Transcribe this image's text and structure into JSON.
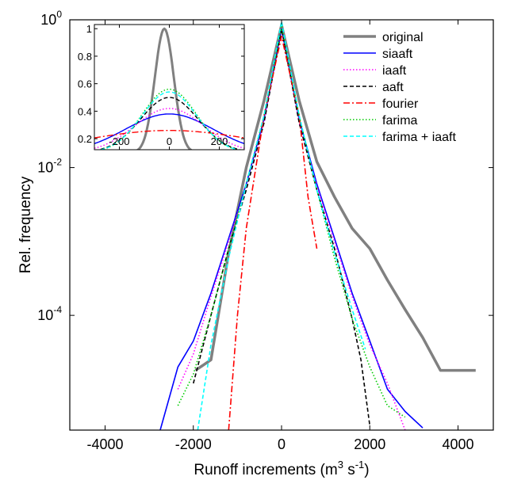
{
  "chart_data": [
    {
      "type": "line",
      "xlabel": "Runoff increments (m³ s⁻¹)",
      "xlabel_parts": [
        "Runoff increments (m",
        "3",
        " s",
        "-1",
        ")"
      ],
      "ylabel": "Rel. frequency",
      "yscale": "log",
      "xlim": [
        -4800,
        4800
      ],
      "ylim": [
        2.8e-06,
        1
      ],
      "xticks": [
        -4000,
        -2000,
        0,
        2000,
        4000
      ],
      "xtick_labels": [
        "-4000",
        "-2000",
        "0",
        "2000",
        "4000"
      ],
      "yticks": [
        {
          "value": 1,
          "base": "10",
          "exp": "0"
        },
        {
          "value": 0.01,
          "base": "10",
          "exp": "-2"
        },
        {
          "value": 0.0001,
          "base": "10",
          "exp": "-4"
        }
      ],
      "grid": false,
      "legend_position": "top-right",
      "series": [
        {
          "name": "original",
          "color": "#808080",
          "dash": "solid",
          "width": 3.5,
          "points": [
            [
              -1950,
              1.8e-05
            ],
            [
              -1600,
              2.5e-05
            ],
            [
              -1200,
              0.0007
            ],
            [
              -800,
              0.01
            ],
            [
              -400,
              0.08
            ],
            [
              0,
              0.85
            ],
            [
              400,
              0.08
            ],
            [
              800,
              0.012
            ],
            [
              1200,
              0.004
            ],
            [
              1600,
              0.0015
            ],
            [
              2000,
              0.0008
            ],
            [
              2400,
              0.0003
            ],
            [
              2800,
              0.00012
            ],
            [
              3200,
              5e-05
            ],
            [
              3600,
              1.8e-05
            ],
            [
              4400,
              1.8e-05
            ]
          ]
        },
        {
          "name": "siaaft",
          "color": "#0000ff",
          "dash": "solid",
          "width": 1.6,
          "points": [
            [
              -2750,
              2.8e-06
            ],
            [
              -2350,
              2e-05
            ],
            [
              -2000,
              4.5e-05
            ],
            [
              -1600,
              0.0002
            ],
            [
              -1200,
              0.0011
            ],
            [
              -800,
              0.006
            ],
            [
              -400,
              0.045
            ],
            [
              0,
              0.75
            ],
            [
              400,
              0.045
            ],
            [
              800,
              0.006
            ],
            [
              1200,
              0.0011
            ],
            [
              1600,
              0.0002
            ],
            [
              2000,
              4.5e-05
            ],
            [
              2400,
              1e-05
            ],
            [
              2800,
              5e-06
            ],
            [
              3200,
              3e-06
            ]
          ]
        },
        {
          "name": "iaaft",
          "color": "#ff00ff",
          "dash": "1.5,2.5",
          "width": 1.6,
          "points": [
            [
              -2350,
              1e-05
            ],
            [
              -2000,
              3e-05
            ],
            [
              -1600,
              0.00018
            ],
            [
              -1200,
              0.001
            ],
            [
              -800,
              0.0055
            ],
            [
              -400,
              0.04
            ],
            [
              0,
              0.75
            ],
            [
              400,
              0.04
            ],
            [
              800,
              0.0055
            ],
            [
              1200,
              0.001
            ],
            [
              1600,
              0.00018
            ],
            [
              2000,
              4e-05
            ],
            [
              2400,
              1.2e-05
            ],
            [
              2800,
              2.8e-06
            ]
          ]
        },
        {
          "name": "aaft",
          "color": "#000000",
          "dash": "5,3",
          "width": 1.6,
          "points": [
            [
              -2000,
              1.2e-05
            ],
            [
              -1600,
              0.0001
            ],
            [
              -1200,
              0.0008
            ],
            [
              -800,
              0.005
            ],
            [
              -400,
              0.04
            ],
            [
              0,
              0.75
            ],
            [
              400,
              0.04
            ],
            [
              800,
              0.005
            ],
            [
              1200,
              0.0008
            ],
            [
              1600,
              9e-05
            ],
            [
              1800,
              2.5e-05
            ],
            [
              2000,
              3.2e-06
            ]
          ]
        },
        {
          "name": "fourier",
          "color": "#ff0000",
          "dash": "8,3,2,3",
          "width": 1.6,
          "points": [
            [
              -1200,
              2.8e-06
            ],
            [
              -1000,
              0.0001
            ],
            [
              -800,
              0.0015
            ],
            [
              -400,
              0.05
            ],
            [
              0,
              0.6
            ],
            [
              400,
              0.05
            ],
            [
              600,
              0.004
            ],
            [
              800,
              0.0008
            ]
          ]
        },
        {
          "name": "farima",
          "color": "#00cc00",
          "dash": "1.5,2.5",
          "width": 1.6,
          "points": [
            [
              -2350,
              6e-06
            ],
            [
              -2000,
              1.6e-05
            ],
            [
              -1600,
              0.0001
            ],
            [
              -1200,
              0.0008
            ],
            [
              -800,
              0.006
            ],
            [
              -400,
              0.05
            ],
            [
              0,
              0.8
            ],
            [
              400,
              0.05
            ],
            [
              800,
              0.005
            ],
            [
              1200,
              0.0006
            ],
            [
              1600,
              9e-05
            ],
            [
              2000,
              2e-05
            ],
            [
              2400,
              6e-06
            ],
            [
              2800,
              4.2e-06
            ]
          ]
        },
        {
          "name": "farima + iaaft",
          "color": "#00ffff",
          "dash": "5,3",
          "width": 1.6,
          "points": [
            [
              -1900,
              2.8e-06
            ],
            [
              -1600,
              4e-05
            ],
            [
              -1200,
              0.0006
            ],
            [
              -800,
              0.006
            ],
            [
              -400,
              0.05
            ],
            [
              0,
              0.95
            ],
            [
              400,
              0.05
            ],
            [
              800,
              0.005
            ],
            [
              1200,
              0.0007
            ],
            [
              1600,
              0.00012
            ],
            [
              1900,
              3.5e-05
            ]
          ]
        }
      ]
    },
    {
      "type": "line",
      "xlim": [
        -300,
        300
      ],
      "ylim": [
        0.12,
        1.03
      ],
      "xticks": [
        -200,
        0,
        200
      ],
      "xtick_labels": [
        "-200",
        "0",
        "200"
      ],
      "yticks": [
        0.2,
        0.4,
        0.6,
        0.8,
        1
      ],
      "ytick_labels": [
        "0.2",
        "0.4",
        "0.6",
        "0.8",
        "1"
      ],
      "series": [
        {
          "name": "original",
          "color": "#808080",
          "dash": "solid",
          "width": 3,
          "kind": "gauss",
          "amp": 1.0,
          "mu": -20,
          "sigma": 38,
          "base": 0.1
        },
        {
          "name": "siaaft",
          "color": "#0000ff",
          "dash": "solid",
          "width": 1.4,
          "kind": "gauss",
          "amp": 0.38,
          "mu": 0,
          "sigma": 175,
          "base": 0.1
        },
        {
          "name": "iaaft",
          "color": "#ff00ff",
          "dash": "1.5,2.5",
          "width": 1.4,
          "kind": "gauss",
          "amp": 0.42,
          "mu": 0,
          "sigma": 138,
          "base": 0.1
        },
        {
          "name": "aaft",
          "color": "#000000",
          "dash": "5,3",
          "width": 1.4,
          "kind": "gauss",
          "amp": 0.5,
          "mu": 0,
          "sigma": 115,
          "base": 0.1
        },
        {
          "name": "fourier",
          "color": "#ff0000",
          "dash": "8,3,2,3",
          "width": 1.4,
          "kind": "gauss",
          "amp": 0.26,
          "mu": 0,
          "sigma": 330,
          "base": 0.1
        },
        {
          "name": "farima",
          "color": "#00cc00",
          "dash": "1.5,2.5",
          "width": 1.4,
          "kind": "gauss",
          "amp": 0.56,
          "mu": 0,
          "sigma": 108,
          "base": 0.1
        },
        {
          "name": "farima + iaaft",
          "color": "#00ffff",
          "dash": "5,3",
          "width": 1.4,
          "kind": "gauss",
          "amp": 0.54,
          "mu": 0,
          "sigma": 110,
          "base": 0.1
        }
      ]
    }
  ]
}
